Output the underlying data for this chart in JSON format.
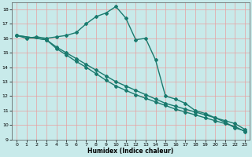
{
  "xlabel": "Humidex (Indice chaleur)",
  "xlim": [
    -0.5,
    23.5
  ],
  "ylim": [
    9,
    18.5
  ],
  "yticks": [
    9,
    10,
    11,
    12,
    13,
    14,
    15,
    16,
    17,
    18
  ],
  "xticks": [
    0,
    1,
    2,
    3,
    4,
    5,
    6,
    7,
    8,
    9,
    10,
    11,
    12,
    13,
    14,
    15,
    16,
    17,
    18,
    19,
    20,
    21,
    22,
    23
  ],
  "background_color": "#c8eaea",
  "grid_color": "#e8a0a0",
  "line_color": "#1a7a6e",
  "line_width": 1.0,
  "marker": "D",
  "marker_size": 2.0,
  "series": [
    {
      "x": [
        0,
        1,
        2,
        3,
        4,
        5,
        6,
        7,
        8,
        9,
        10,
        11,
        12,
        13,
        14,
        15,
        16,
        17,
        18,
        19,
        20,
        21,
        22,
        23
      ],
      "y": [
        16.2,
        16.0,
        16.1,
        16.0,
        16.1,
        16.2,
        16.4,
        17.0,
        17.5,
        17.75,
        18.2,
        17.4,
        15.9,
        16.0,
        14.5,
        12.0,
        11.8,
        11.5,
        11.0,
        10.8,
        10.5,
        10.2,
        9.8,
        9.6
      ]
    },
    {
      "x": [
        0,
        3,
        4,
        5,
        6,
        7,
        8,
        9,
        10,
        11,
        12,
        13,
        14,
        15,
        16,
        17,
        18,
        19,
        20,
        21,
        22,
        23
      ],
      "y": [
        16.2,
        15.9,
        15.4,
        15.0,
        14.6,
        14.2,
        13.8,
        13.4,
        13.0,
        12.7,
        12.4,
        12.1,
        11.8,
        11.5,
        11.3,
        11.1,
        10.9,
        10.7,
        10.5,
        10.3,
        10.1,
        9.7
      ]
    },
    {
      "x": [
        0,
        3,
        4,
        5,
        6,
        7,
        8,
        9,
        10,
        11,
        12,
        13,
        14,
        15,
        16,
        17,
        18,
        19,
        20,
        21,
        22,
        23
      ],
      "y": [
        16.2,
        15.9,
        15.3,
        14.85,
        14.4,
        14.0,
        13.55,
        13.1,
        12.7,
        12.4,
        12.1,
        11.85,
        11.6,
        11.35,
        11.1,
        10.9,
        10.7,
        10.5,
        10.3,
        10.1,
        9.9,
        9.55
      ]
    }
  ]
}
